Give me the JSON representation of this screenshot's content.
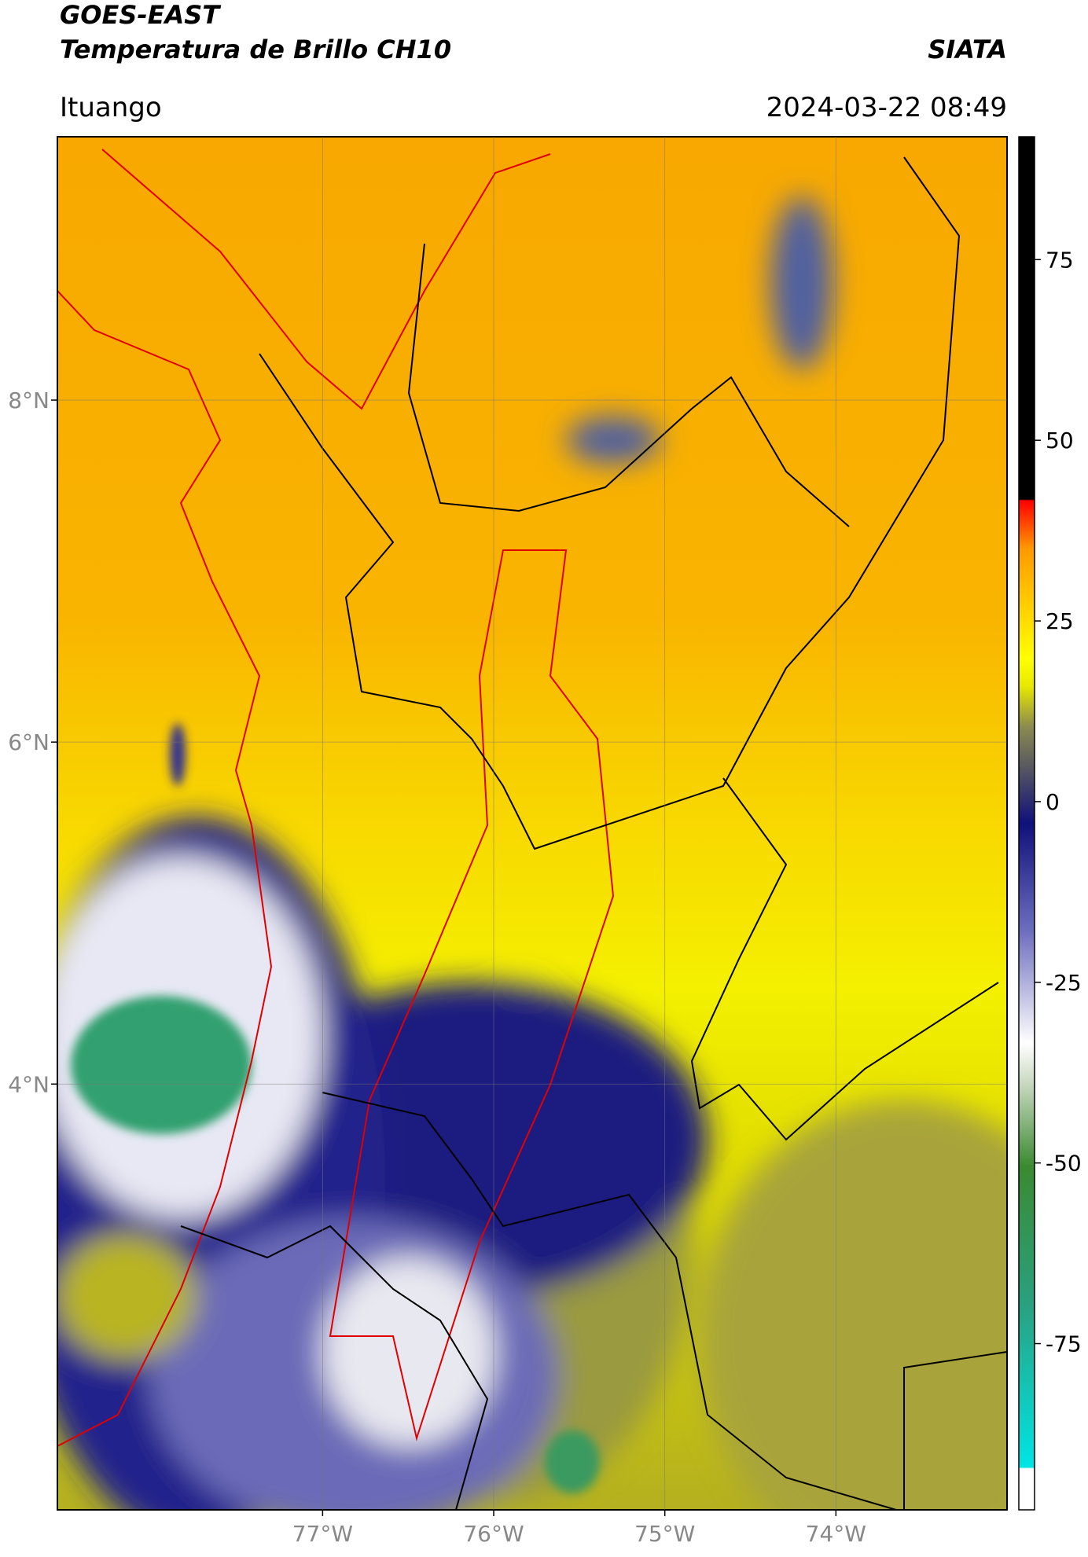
{
  "header": {
    "title": "GOES-EAST",
    "subtitle": "Temperatura de Brillo CH10",
    "brand": "SIATA",
    "location": "Ituango",
    "datetime": "2024-03-22 08:49"
  },
  "map": {
    "lonlim": [
      -78.55,
      -73.0
    ],
    "latlim": [
      1.51,
      9.54
    ],
    "lat_ticks": [
      {
        "value": 8,
        "label": "8°N"
      },
      {
        "value": 6,
        "label": "6°N"
      },
      {
        "value": 4,
        "label": "4°N"
      }
    ],
    "lon_ticks": [
      {
        "value": -77,
        "label": "77°W"
      },
      {
        "value": -76,
        "label": "76°W"
      },
      {
        "value": -75,
        "label": "75°W"
      },
      {
        "value": -74,
        "label": "74°W"
      }
    ],
    "grid": true
  },
  "colorbar": {
    "lim": [
      -98,
      92
    ],
    "ticks": [
      75,
      50,
      25,
      0,
      -25,
      -50,
      -75
    ]
  }
}
